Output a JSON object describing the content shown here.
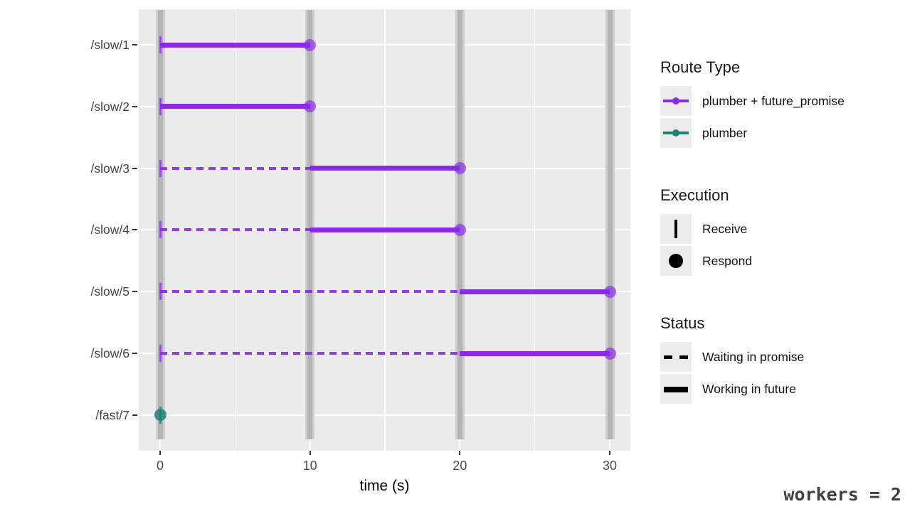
{
  "chart_data": {
    "type": "gantt-timeline",
    "title": "",
    "xlabel": "time (s)",
    "x_ticks": [
      0,
      10,
      20,
      30
    ],
    "x_minor_gridlines": [
      5,
      15,
      25
    ],
    "xlim": [
      -1.4,
      31.4
    ],
    "y_categories": [
      "/slow/1",
      "/slow/2",
      "/slow/3",
      "/slow/4",
      "/slow/5",
      "/slow/6",
      "/fast/7"
    ],
    "worker_availability_times": [
      0,
      10,
      20,
      30
    ],
    "routes": [
      {
        "route": "/slow/1",
        "type": "plumber + future_promise",
        "receive_s": 0,
        "waiting": null,
        "working": [
          0,
          10
        ],
        "respond_s": 10
      },
      {
        "route": "/slow/2",
        "type": "plumber + future_promise",
        "receive_s": 0,
        "waiting": null,
        "working": [
          0,
          10
        ],
        "respond_s": 10
      },
      {
        "route": "/slow/3",
        "type": "plumber + future_promise",
        "receive_s": 0,
        "waiting": [
          0,
          10
        ],
        "working": [
          10,
          20
        ],
        "respond_s": 20
      },
      {
        "route": "/slow/4",
        "type": "plumber + future_promise",
        "receive_s": 0,
        "waiting": [
          0,
          10
        ],
        "working": [
          10,
          20
        ],
        "respond_s": 20
      },
      {
        "route": "/slow/5",
        "type": "plumber + future_promise",
        "receive_s": 0,
        "waiting": [
          0,
          20
        ],
        "working": [
          20,
          30
        ],
        "respond_s": 30
      },
      {
        "route": "/slow/6",
        "type": "plumber + future_promise",
        "receive_s": 0,
        "waiting": [
          0,
          20
        ],
        "working": [
          20,
          30
        ],
        "respond_s": 30
      },
      {
        "route": "/fast/7",
        "type": "plumber",
        "receive_s": 0,
        "waiting": null,
        "working": null,
        "respond_s": 0
      }
    ]
  },
  "legend_groups": [
    {
      "title": "Route Type",
      "items": [
        {
          "label": "plumber + future_promise",
          "glyph": "line-dot",
          "color": "#8B2BE8"
        },
        {
          "label": "plumber",
          "glyph": "line-dot",
          "color": "#1B8076"
        }
      ]
    },
    {
      "title": "Execution",
      "items": [
        {
          "label": "Receive",
          "glyph": "vline",
          "color": "#000000"
        },
        {
          "label": "Respond",
          "glyph": "dot",
          "color": "#000000"
        }
      ]
    },
    {
      "title": "Status",
      "items": [
        {
          "label": "Waiting in promise",
          "glyph": "dashed",
          "color": "#000000"
        },
        {
          "label": "Working in future",
          "glyph": "solid",
          "color": "#000000"
        }
      ]
    }
  ],
  "annotation": {
    "text": "workers = 2"
  },
  "colors": {
    "purple": "#8B2BE8",
    "teal": "#1B8076",
    "panel_bg": "#EBEBEB",
    "band_outer": "#CDCDCD",
    "band_inner": "#B4B4B4",
    "gridline": "#FFFFFF",
    "axis_text": "#4D4D4D",
    "tick_mark": "#333333"
  }
}
